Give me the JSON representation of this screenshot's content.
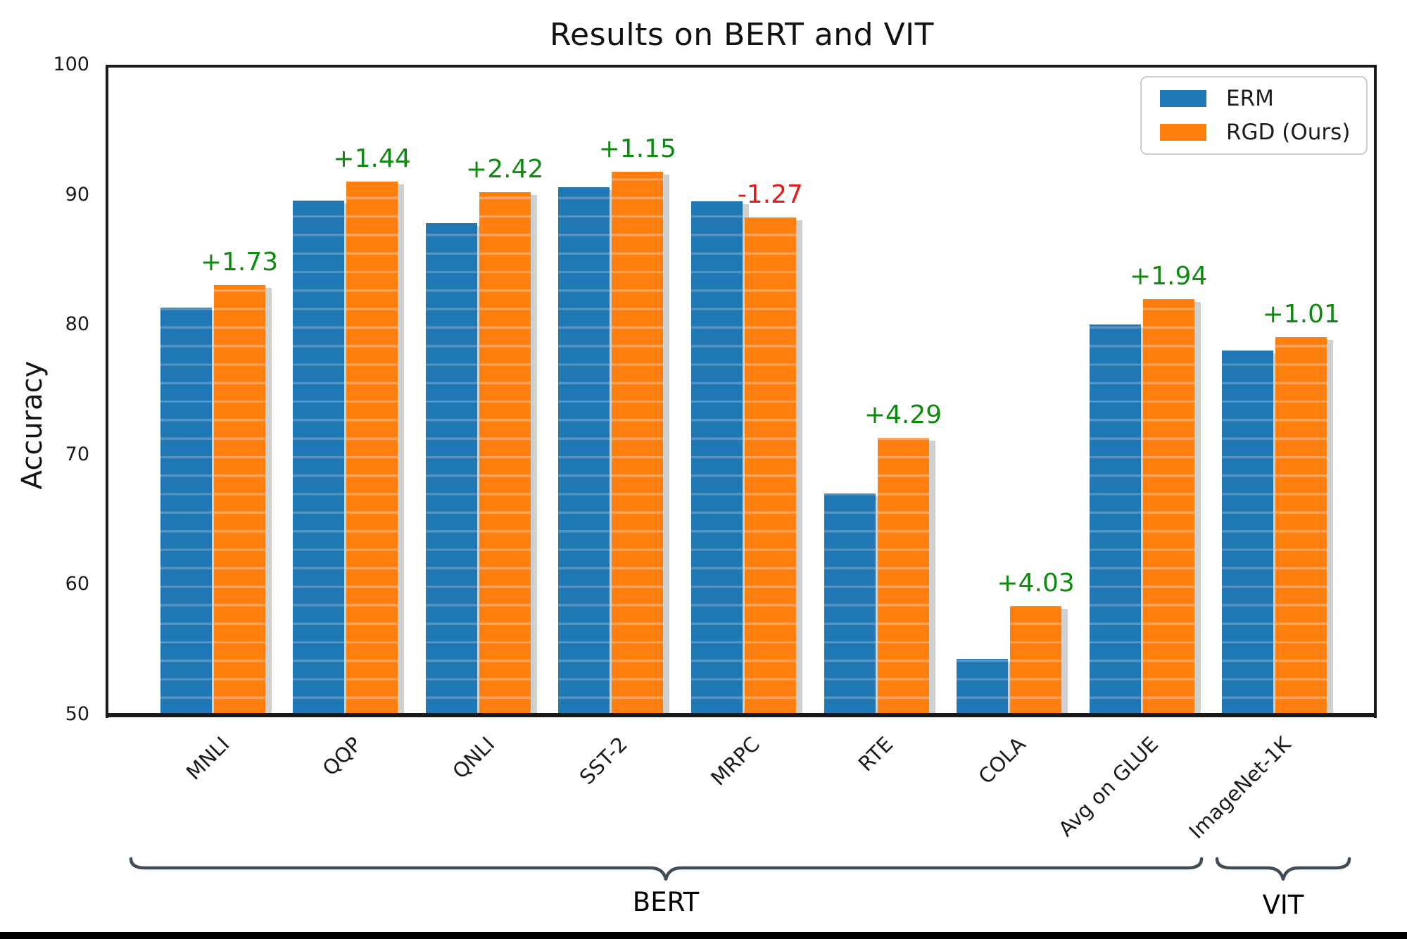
{
  "figure": {
    "title": "Results on BERT and VIT",
    "ylabel": "Accuracy"
  },
  "legend": {
    "position": "upper right",
    "items": [
      {
        "label": "ERM",
        "color": "#1f77b4"
      },
      {
        "label": "RGD (Ours)",
        "color": "#ff7f0e"
      }
    ]
  },
  "braces": {
    "bert_label": "BERT",
    "vit_label": "VIT",
    "color": "#414c57"
  },
  "chart_data": {
    "type": "bar",
    "title": "Results on BERT and VIT",
    "xlabel": "",
    "ylabel": "Accuracy",
    "ylim": [
      50,
      100
    ],
    "yticks": [
      100,
      90,
      80,
      70,
      60,
      50
    ],
    "grid": false,
    "legend_position": "upper right",
    "categories": [
      "MNLI",
      "QQP",
      "QNLI",
      "SST-2",
      "MRPC",
      "RTE",
      "COLA",
      "Avg on GLUE",
      "ImageNet-1K"
    ],
    "series": [
      {
        "name": "ERM",
        "color": "#1f77b4",
        "stripe_color": "#5593c2",
        "values": [
          81.3,
          89.55,
          87.8,
          90.6,
          89.5,
          67.0,
          54.3,
          80.0,
          78.0
        ]
      },
      {
        "name": "RGD (Ours)",
        "color": "#ff7f0e",
        "stripe_color": "#fca45d",
        "values": [
          83.03,
          90.99,
          90.22,
          91.75,
          88.23,
          71.29,
          58.33,
          81.94,
          79.01
        ]
      }
    ],
    "annotations": [
      {
        "text": "+1.73",
        "value": 1.73,
        "color": "#0e8a0e"
      },
      {
        "text": "+1.44",
        "value": 1.44,
        "color": "#0e8a0e"
      },
      {
        "text": "+2.42",
        "value": 2.42,
        "color": "#0e8a0e"
      },
      {
        "text": "+1.15",
        "value": 1.15,
        "color": "#0e8a0e"
      },
      {
        "text": "-1.27",
        "value": -1.27,
        "color": "#e41a1a"
      },
      {
        "text": "+4.29",
        "value": 4.29,
        "color": "#0e8a0e"
      },
      {
        "text": "+4.03",
        "value": 4.03,
        "color": "#0e8a0e"
      },
      {
        "text": "+1.94",
        "value": 1.94,
        "color": "#0e8a0e"
      },
      {
        "text": "+1.01",
        "value": 1.01,
        "color": "#0e8a0e"
      }
    ],
    "group_brackets": [
      {
        "label": "BERT",
        "categories": [
          "MNLI",
          "QQP",
          "QNLI",
          "SST-2",
          "MRPC",
          "RTE",
          "COLA",
          "Avg on GLUE"
        ]
      },
      {
        "label": "VIT",
        "categories": [
          "ImageNet-1K"
        ]
      }
    ],
    "bar_shadow_color": "#d0d0d0"
  }
}
